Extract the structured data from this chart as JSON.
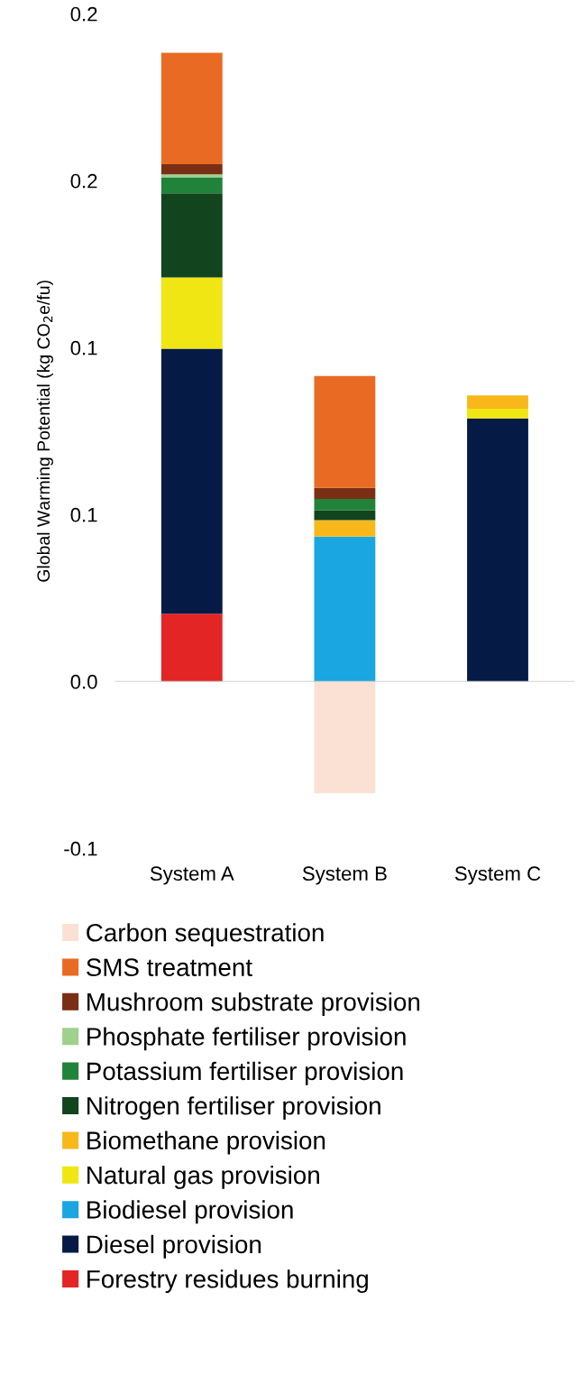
{
  "chart_data": {
    "type": "bar",
    "stacked": true,
    "ylabel": "Global Warming Potential (kg CO$_{2}$e/fu)",
    "categories": [
      "System A",
      "System B",
      "System C"
    ],
    "series": [
      {
        "name": "Forestry residues burning",
        "color": "#e32526",
        "values": [
          0.0203,
          null,
          null
        ]
      },
      {
        "name": "Diesel provision",
        "color": "#051a45",
        "values": [
          0.0794,
          null,
          0.0788
        ]
      },
      {
        "name": "Biodiesel provision",
        "color": "#1aa6e0",
        "values": [
          null,
          0.0434,
          null
        ]
      },
      {
        "name": "Natural gas provision",
        "color": "#f0e614",
        "values": [
          0.0213,
          null,
          0.0029
        ]
      },
      {
        "name": "Biomethane provision",
        "color": "#f8b81a",
        "values": [
          null,
          0.0049,
          0.004
        ]
      },
      {
        "name": "Nitrogen fertiliser provision",
        "color": "#12441e",
        "values": [
          0.0252,
          0.0029,
          null
        ]
      },
      {
        "name": "Potassium fertiliser provision",
        "color": "#21823a",
        "values": [
          0.0048,
          0.0035,
          null
        ]
      },
      {
        "name": "Phosphate fertiliser provision",
        "color": "#9fd18c",
        "values": [
          0.0009,
          null,
          null
        ]
      },
      {
        "name": "Mushroom substrate provision",
        "color": "#7a2e14",
        "values": [
          0.003,
          0.0033,
          null
        ]
      },
      {
        "name": "SMS treatment",
        "color": "#e96b23",
        "values": [
          0.0334,
          0.0335,
          null
        ]
      },
      {
        "name": "Carbon sequestration",
        "color": "#fbe0d4",
        "values": [
          null,
          -0.0335,
          null
        ]
      }
    ],
    "ylim": [
      -0.05,
      0.2
    ],
    "yticks": [
      {
        "value": -0.05,
        "label": "-0.1"
      },
      {
        "value": 0,
        "label": "0.0"
      },
      {
        "value": 0.05,
        "label": "0.1"
      },
      {
        "value": 0.1,
        "label": "0.1"
      },
      {
        "value": 0.15,
        "label": "0.2"
      },
      {
        "value": 0.2,
        "label": "0.2"
      }
    ],
    "legend": "bottom"
  }
}
